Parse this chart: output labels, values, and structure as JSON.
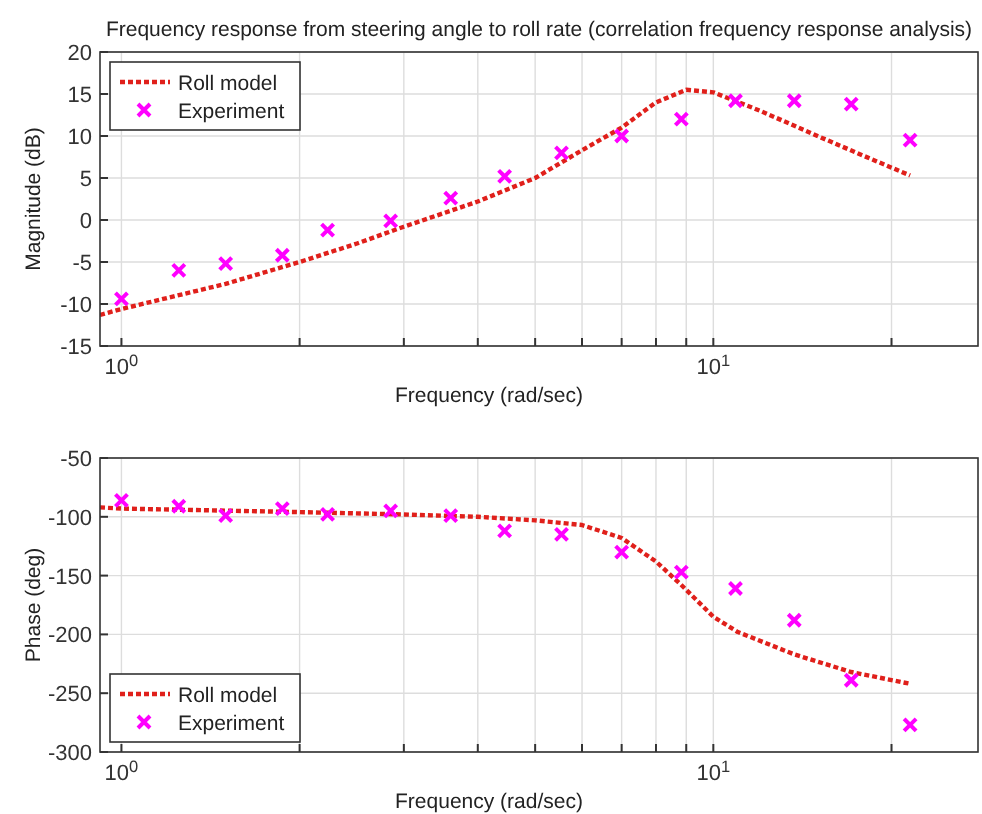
{
  "chart_data": [
    {
      "type": "line",
      "title": "Frequency response from steering angle to roll rate (correlation frequency response analysis)",
      "xlabel": "Frequency (rad/sec)",
      "ylabel": "Magnitude (dB)",
      "log": "x",
      "grid": true,
      "legend": "top left",
      "xlim": [
        0.92,
        28
      ],
      "xticks": [
        {
          "value": 1,
          "label": "10$^{0}$"
        },
        {
          "value": 2,
          "label": null
        },
        {
          "value": 3,
          "label": null
        },
        {
          "value": 4,
          "label": null
        },
        {
          "value": 5,
          "label": null
        },
        {
          "value": 6,
          "label": null
        },
        {
          "value": 7,
          "label": null
        },
        {
          "value": 8,
          "label": null
        },
        {
          "value": 9,
          "label": null
        },
        {
          "value": 10,
          "label": "10$^{1}$"
        },
        {
          "value": 20,
          "label": null
        }
      ],
      "ylim": [
        -15,
        20
      ],
      "yticks": [
        -15,
        -10,
        -5,
        0,
        5,
        10,
        15,
        20
      ],
      "series": [
        {
          "name": "Roll model",
          "type": "line",
          "color": "#e0201b",
          "line_style": "dotted",
          "marker": "none",
          "x": [
            0.92,
            1,
            1.5,
            2,
            2.5,
            3,
            4,
            5,
            6,
            7,
            8,
            9,
            10,
            12,
            15,
            18,
            21.5
          ],
          "values": [
            -11.3,
            -10.6,
            -7.6,
            -5,
            -2.8,
            -0.8,
            2.2,
            5,
            8.3,
            11,
            14,
            15.5,
            15.2,
            13,
            10,
            7.6,
            5.3
          ]
        },
        {
          "name": "Experiment",
          "type": "scatter",
          "color": "#ff00ff",
          "marker": "cross",
          "x": [
            1,
            1.25,
            1.5,
            1.87,
            2.23,
            2.85,
            3.6,
            4.44,
            5.54,
            7,
            8.83,
            10.9,
            13.7,
            17.1,
            21.5
          ],
          "values": [
            -9.4,
            -6,
            -5.2,
            -4.2,
            -1.2,
            -0.1,
            2.6,
            5.2,
            8,
            10,
            12,
            14.2,
            14.2,
            13.8,
            9.5
          ]
        }
      ]
    },
    {
      "type": "line",
      "xlabel": "Frequency (rad/sec)",
      "ylabel": "Phase (deg)",
      "log": "x",
      "grid": true,
      "legend": "bottom left",
      "xlim": [
        0.92,
        28
      ],
      "xticks": [
        {
          "value": 1,
          "label": "10$^{0}$"
        },
        {
          "value": 2,
          "label": null
        },
        {
          "value": 3,
          "label": null
        },
        {
          "value": 4,
          "label": null
        },
        {
          "value": 5,
          "label": null
        },
        {
          "value": 6,
          "label": null
        },
        {
          "value": 7,
          "label": null
        },
        {
          "value": 8,
          "label": null
        },
        {
          "value": 9,
          "label": null
        },
        {
          "value": 10,
          "label": "10$^{1}$"
        },
        {
          "value": 20,
          "label": null
        }
      ],
      "ylim": [
        -300,
        -50
      ],
      "yticks": [
        -300,
        -250,
        -200,
        -150,
        -100,
        -50
      ],
      "series": [
        {
          "name": "Roll model",
          "type": "line",
          "color": "#e0201b",
          "line_style": "dotted",
          "marker": "none",
          "x": [
            0.92,
            1,
            2,
            3,
            4,
            5,
            6,
            7,
            8,
            8.83,
            10,
            11,
            13.7,
            17.1,
            21.5
          ],
          "values": [
            -92,
            -93,
            -96,
            -98,
            -100,
            -103,
            -107,
            -118,
            -138,
            -158,
            -185,
            -198,
            -217,
            -232,
            -242
          ]
        },
        {
          "name": "Experiment",
          "type": "scatter",
          "color": "#ff00ff",
          "marker": "cross",
          "x": [
            1,
            1.25,
            1.5,
            1.87,
            2.23,
            2.85,
            3.6,
            4.44,
            5.54,
            7,
            8.83,
            10.9,
            13.7,
            17.1,
            21.5
          ],
          "values": [
            -86,
            -91,
            -99,
            -93,
            -98,
            -95,
            -99,
            -112,
            -115,
            -130,
            -147,
            -161,
            -188,
            -239,
            -277
          ]
        }
      ]
    }
  ]
}
